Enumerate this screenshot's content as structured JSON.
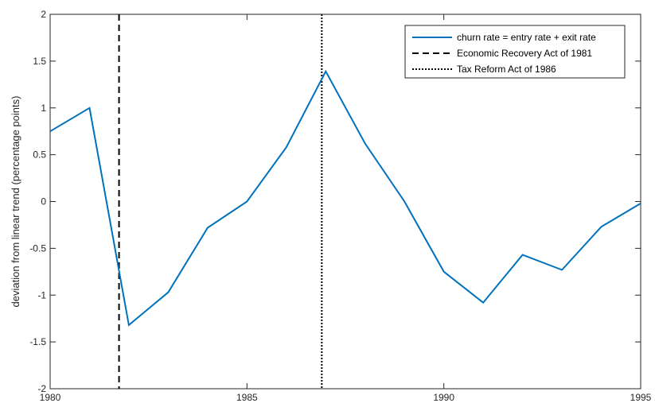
{
  "chart_data": {
    "type": "line",
    "title": "",
    "xlabel": "",
    "ylabel": "deviation from linear trend (percentage points)",
    "xlim": [
      1980,
      1995
    ],
    "ylim": [
      -2,
      2
    ],
    "xticks": [
      1980,
      1985,
      1990,
      1995
    ],
    "yticks": [
      -2,
      -1.5,
      -1,
      -0.5,
      0,
      0.5,
      1,
      1.5,
      2
    ],
    "xtick_labels": [
      "1980",
      "1985",
      "1990",
      "1995"
    ],
    "ytick_labels": [
      "-2",
      "-1.5",
      "-1",
      "-0.5",
      "0",
      "0.5",
      "1",
      "1.5",
      "2"
    ],
    "grid": false,
    "legend_position": "top-right",
    "series": [
      {
        "name": "churn rate = entry rate + exit rate",
        "style": "solid",
        "color": "#0072BD",
        "x": [
          1980,
          1981,
          1982,
          1983,
          1984,
          1985,
          1986,
          1987,
          1988,
          1989,
          1990,
          1991,
          1992,
          1993,
          1994,
          1995
        ],
        "y": [
          0.75,
          1.0,
          -1.32,
          -0.97,
          -0.28,
          0.0,
          0.58,
          1.39,
          0.62,
          0.0,
          -0.75,
          -1.08,
          -0.57,
          -0.73,
          -0.27,
          -0.02
        ]
      }
    ],
    "vlines": [
      {
        "name": "Economic Recovery Act of 1981",
        "x": 1981.75,
        "style": "dashed",
        "color": "#000000"
      },
      {
        "name": "Tax Reform Act of 1986",
        "x": 1986.9,
        "style": "dotted",
        "color": "#000000"
      }
    ]
  }
}
